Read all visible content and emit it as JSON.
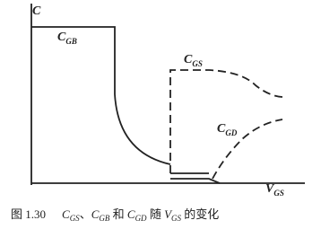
{
  "axes": {
    "y_label": "C",
    "x_label": {
      "main": "V",
      "sub": "GS"
    }
  },
  "curves": [
    {
      "main": "C",
      "sub": "GB"
    },
    {
      "main": "C",
      "sub": "GS"
    },
    {
      "main": "C",
      "sub": "GD"
    }
  ],
  "caption": {
    "number": "图 1.30",
    "segments": [
      {
        "main": "C",
        "sub": "GS"
      },
      {
        "text": "、"
      },
      {
        "main": "C",
        "sub": "GB"
      },
      {
        "text": " 和 "
      },
      {
        "main": "C",
        "sub": "GD"
      },
      {
        "text": " 随 "
      },
      {
        "main": "V",
        "sub": "GS"
      },
      {
        "text": " 的变化"
      }
    ]
  }
}
